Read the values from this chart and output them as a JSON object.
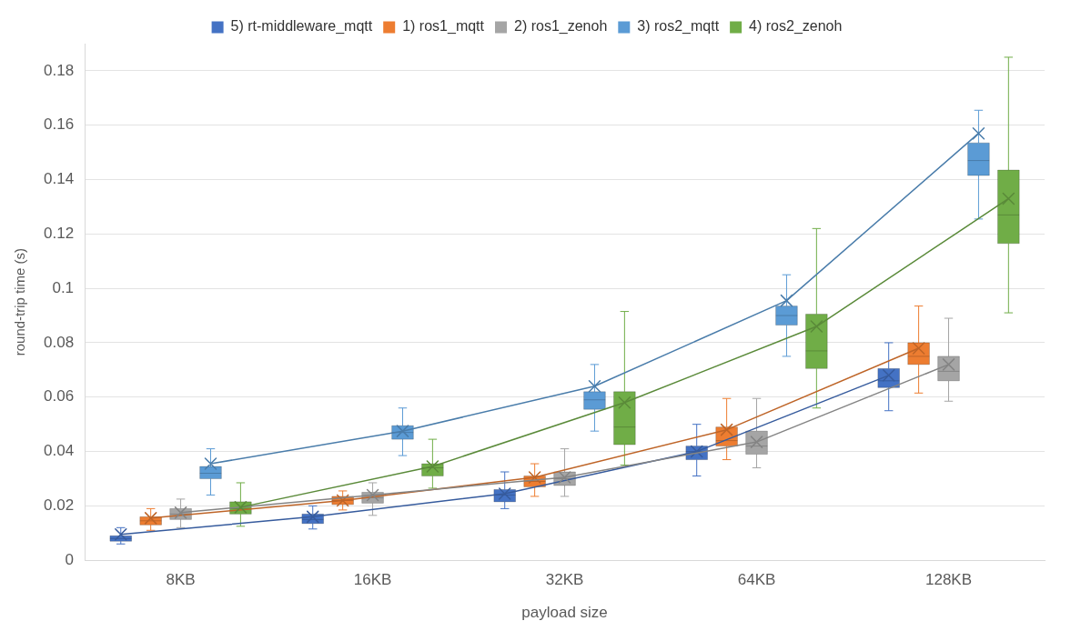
{
  "chart_data": {
    "type": "box",
    "xlabel": "payload size",
    "ylabel": "round-trip time (s)",
    "categories": [
      "8KB",
      "16KB",
      "32KB",
      "64KB",
      "128KB"
    ],
    "ylim": [
      0,
      0.19
    ],
    "yticks": [
      0,
      0.02,
      0.04,
      0.06,
      0.08,
      0.1,
      0.12,
      0.14,
      0.16,
      0.18
    ],
    "grid": "y",
    "legend": "top",
    "series": [
      {
        "name": "5) rt-middleware_mqtt",
        "color": "#4472c4",
        "boxes": [
          {
            "low": 0.006,
            "q1": 0.007,
            "median": 0.008,
            "q3": 0.009,
            "high": 0.012
          },
          {
            "low": 0.0115,
            "q1": 0.0135,
            "median": 0.015,
            "q3": 0.017,
            "high": 0.02
          },
          {
            "low": 0.019,
            "q1": 0.0215,
            "median": 0.024,
            "q3": 0.026,
            "high": 0.0325
          },
          {
            "low": 0.031,
            "q1": 0.037,
            "median": 0.04,
            "q3": 0.042,
            "high": 0.05
          },
          {
            "low": 0.055,
            "q1": 0.0635,
            "median": 0.066,
            "q3": 0.0705,
            "high": 0.08
          }
        ]
      },
      {
        "name": "1) ros1_mqtt",
        "color": "#ed7d31",
        "boxes": [
          {
            "low": 0.011,
            "q1": 0.013,
            "median": 0.0145,
            "q3": 0.016,
            "high": 0.019
          },
          {
            "low": 0.0185,
            "q1": 0.0205,
            "median": 0.022,
            "q3": 0.0235,
            "high": 0.0255
          },
          {
            "low": 0.0235,
            "q1": 0.027,
            "median": 0.029,
            "q3": 0.031,
            "high": 0.0355
          },
          {
            "low": 0.037,
            "q1": 0.042,
            "median": 0.044,
            "q3": 0.049,
            "high": 0.0595
          },
          {
            "low": 0.0615,
            "q1": 0.072,
            "median": 0.075,
            "q3": 0.08,
            "high": 0.0935
          }
        ]
      },
      {
        "name": "2) ros1_zenoh",
        "color": "#a5a5a5",
        "boxes": [
          {
            "low": 0.012,
            "q1": 0.015,
            "median": 0.017,
            "q3": 0.019,
            "high": 0.0225
          },
          {
            "low": 0.0165,
            "q1": 0.021,
            "median": 0.023,
            "q3": 0.025,
            "high": 0.0285
          },
          {
            "low": 0.0235,
            "q1": 0.0275,
            "median": 0.03,
            "q3": 0.0325,
            "high": 0.041
          },
          {
            "low": 0.034,
            "q1": 0.039,
            "median": 0.042,
            "q3": 0.0475,
            "high": 0.0595
          },
          {
            "low": 0.0585,
            "q1": 0.066,
            "median": 0.0695,
            "q3": 0.075,
            "high": 0.089
          }
        ]
      },
      {
        "name": "3) ros2_mqtt",
        "color": "#5b9bd5",
        "boxes": [
          {
            "low": 0.024,
            "q1": 0.03,
            "median": 0.032,
            "q3": 0.0345,
            "high": 0.041
          },
          {
            "low": 0.0385,
            "q1": 0.0445,
            "median": 0.047,
            "q3": 0.0495,
            "high": 0.056
          },
          {
            "low": 0.0475,
            "q1": 0.0555,
            "median": 0.059,
            "q3": 0.062,
            "high": 0.072
          },
          {
            "low": 0.075,
            "q1": 0.0865,
            "median": 0.09,
            "q3": 0.0935,
            "high": 0.105
          },
          {
            "low": 0.1255,
            "q1": 0.1415,
            "median": 0.147,
            "q3": 0.1535,
            "high": 0.1655
          }
        ]
      },
      {
        "name": "4) ros2_zenoh",
        "color": "#70ad47",
        "boxes": [
          {
            "low": 0.0125,
            "q1": 0.017,
            "median": 0.019,
            "q3": 0.0215,
            "high": 0.0285
          },
          {
            "low": 0.0265,
            "q1": 0.031,
            "median": 0.034,
            "q3": 0.0355,
            "high": 0.0445
          },
          {
            "low": 0.035,
            "q1": 0.0425,
            "median": 0.049,
            "q3": 0.062,
            "high": 0.0915
          },
          {
            "low": 0.056,
            "q1": 0.0705,
            "median": 0.077,
            "q3": 0.0905,
            "high": 0.122
          },
          {
            "low": 0.091,
            "q1": 0.1165,
            "median": 0.127,
            "q3": 0.1435,
            "high": 0.185
          }
        ]
      },
      {
        "type": "line",
        "color": "#365b9d",
        "marker": "cross",
        "values": [
          0.0095,
          0.016,
          0.0245,
          0.04,
          0.068
        ]
      },
      {
        "type": "line",
        "color": "#be6427",
        "marker": "cross",
        "values": [
          0.0155,
          0.022,
          0.0305,
          0.048,
          0.078
        ]
      },
      {
        "type": "line",
        "color": "#848484",
        "marker": "cross",
        "values": [
          0.0175,
          0.024,
          0.0305,
          0.0435,
          0.072
        ]
      },
      {
        "type": "line",
        "color": "#497caa",
        "marker": "cross",
        "values": [
          0.0355,
          0.0475,
          0.064,
          0.0955,
          0.157
        ]
      },
      {
        "type": "line",
        "color": "#5a8a39",
        "marker": "cross",
        "values": [
          0.0195,
          0.0345,
          0.058,
          0.086,
          0.133
        ]
      }
    ]
  }
}
